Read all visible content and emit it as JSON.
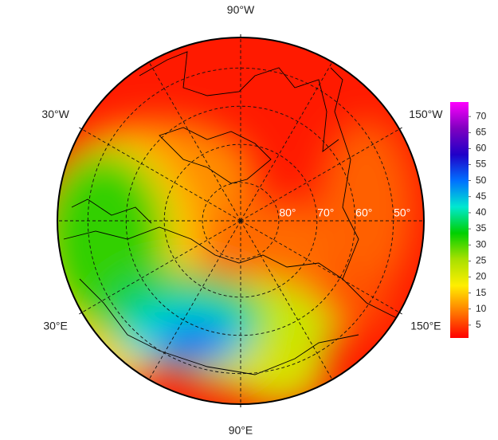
{
  "chart_data": {
    "type": "polar-map",
    "lon_labels": [
      {
        "value": -90,
        "label": "90°W"
      },
      {
        "value": -30,
        "label": "30°W"
      },
      {
        "value": -150,
        "label": "150°W"
      },
      {
        "value": 30,
        "label": "30°E"
      },
      {
        "value": 150,
        "label": "150°E"
      },
      {
        "value": 90,
        "label": "90°E"
      }
    ],
    "lat_labels": [
      {
        "value": 80,
        "label": "80°"
      },
      {
        "value": 70,
        "label": "70°"
      },
      {
        "value": 60,
        "label": "60°"
      },
      {
        "value": 50,
        "label": "50°"
      }
    ],
    "rlim": [
      90,
      42
    ],
    "colorbar": {
      "clim": [
        1,
        74.5
      ],
      "ticks": [
        5,
        10,
        15,
        20,
        25,
        30,
        35,
        40,
        45,
        50,
        55,
        60,
        65,
        70
      ],
      "colors": [
        "#ff0000",
        "#ff7a00",
        "#ffee00",
        "#a8e000",
        "#00d000",
        "#00e8d0",
        "#0070ff",
        "#2000c8",
        "#8000c0",
        "#ff00ff"
      ]
    }
  }
}
